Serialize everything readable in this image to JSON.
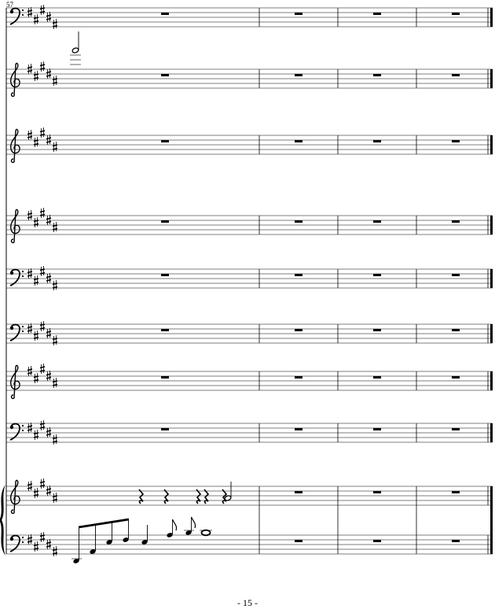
{
  "header": {
    "measure_number": "57"
  },
  "footer": {
    "page_number": "- 15 -"
  }
}
